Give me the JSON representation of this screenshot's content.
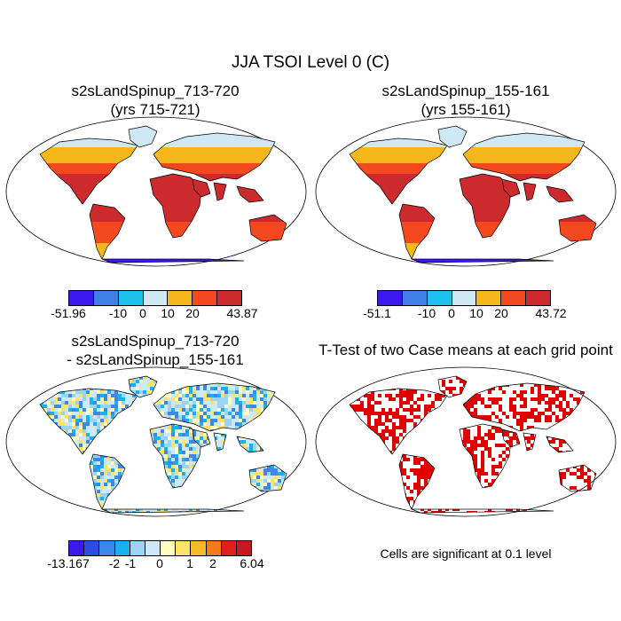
{
  "figure": {
    "title": "JJA TSOI Level 0 (C)",
    "panels": [
      {
        "id": "case1",
        "title_line1": "s2sLandSpinup_713-720",
        "title_line2": "(yrs 715-721)",
        "colorbar": {
          "colors": [
            "#3b18ee",
            "#3f7fe6",
            "#1ec0ee",
            "#cfe8f5",
            "#f5b81b",
            "#f4481e",
            "#cc2a2d"
          ],
          "labels": [
            "-51.96",
            "-10",
            "0",
            "10",
            "20",
            "43.87"
          ]
        }
      },
      {
        "id": "case2",
        "title_line1": "s2sLandSpinup_155-161",
        "title_line2": "(yrs 155-161)",
        "colorbar": {
          "colors": [
            "#3b18ee",
            "#3f7fe6",
            "#1ec0ee",
            "#cfe8f5",
            "#f5b81b",
            "#f4481e",
            "#cc2a2d"
          ],
          "labels": [
            "-51.1",
            "-10",
            "0",
            "10",
            "20",
            "43.72"
          ]
        }
      },
      {
        "id": "difference",
        "title_line1": "s2sLandSpinup_713-720",
        "title_line2": "- s2sLandSpinup_155-161",
        "colorbar": {
          "colors": [
            "#3b18ee",
            "#2a4fe0",
            "#3c88e8",
            "#1ab0ee",
            "#9ad3f3",
            "#cde9f6",
            "#fffcc0",
            "#fce26b",
            "#f8b828",
            "#f37b1c",
            "#e0201c",
            "#c41a1f"
          ],
          "labels": [
            "-13.167",
            "-2",
            "-1",
            "0",
            "1",
            "2",
            "6.04"
          ]
        }
      },
      {
        "id": "ttest",
        "title_line1": "T-Test of two Case means at each grid point",
        "note": "Cells are significant at 0.1 level",
        "significance_color": "#e00000"
      }
    ]
  }
}
